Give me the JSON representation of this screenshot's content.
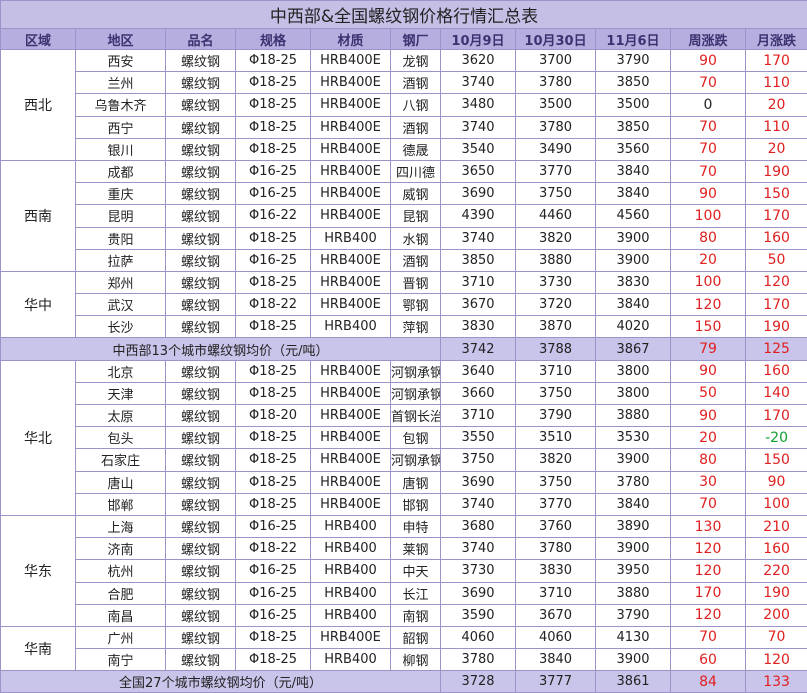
{
  "title": "中西部&全国螺纹钢价格行情汇总表",
  "header": [
    "区域",
    "地区",
    "品名",
    "规格",
    "材质",
    "钢厂",
    "10月9日",
    "10月30日",
    "11月6日",
    "周涨跌",
    "月涨跌"
  ],
  "sections": [
    {
      "groups": [
        {
          "region": "西北",
          "rows": [
            [
              "西安",
              "螺纹钢",
              "Φ18-25",
              "HRB400E",
              "龙钢",
              3620,
              3700,
              3790,
              90,
              170
            ],
            [
              "兰州",
              "螺纹钢",
              "Φ18-25",
              "HRB400E",
              "酒钢",
              3740,
              3780,
              3850,
              70,
              110
            ],
            [
              "乌鲁木齐",
              "螺纹钢",
              "Φ18-25",
              "HRB400E",
              "八钢",
              3480,
              3500,
              3500,
              0,
              20
            ],
            [
              "西宁",
              "螺纹钢",
              "Φ18-25",
              "HRB400E",
              "酒钢",
              3740,
              3780,
              3850,
              70,
              110
            ],
            [
              "银川",
              "螺纹钢",
              "Φ18-25",
              "HRB400E",
              "德晟",
              3540,
              3490,
              3560,
              70,
              20
            ]
          ]
        },
        {
          "region": "西南",
          "rows": [
            [
              "成都",
              "螺纹钢",
              "Φ16-25",
              "HRB400E",
              "四川德",
              3650,
              3770,
              3840,
              70,
              190
            ],
            [
              "重庆",
              "螺纹钢",
              "Φ16-25",
              "HRB400E",
              "威钢",
              3690,
              3750,
              3840,
              90,
              150
            ],
            [
              "昆明",
              "螺纹钢",
              "Φ16-22",
              "HRB400E",
              "昆钢",
              4390,
              4460,
              4560,
              100,
              170
            ],
            [
              "贵阳",
              "螺纹钢",
              "Φ18-25",
              "HRB400",
              "水钢",
              3740,
              3820,
              3900,
              80,
              160
            ],
            [
              "拉萨",
              "螺纹钢",
              "Φ16-25",
              "HRB400E",
              "酒钢",
              3850,
              3880,
              3900,
              20,
              50
            ]
          ]
        },
        {
          "region": "华中",
          "rows": [
            [
              "郑州",
              "螺纹钢",
              "Φ18-25",
              "HRB400E",
              "晋钢",
              3710,
              3730,
              3830,
              100,
              120
            ],
            [
              "武汉",
              "螺纹钢",
              "Φ18-22",
              "HRB400E",
              "鄂钢",
              3670,
              3720,
              3840,
              120,
              170
            ],
            [
              "长沙",
              "螺纹钢",
              "Φ18-25",
              "HRB400",
              "萍钢",
              3830,
              3870,
              4020,
              150,
              190
            ]
          ]
        }
      ],
      "summary": {
        "label": "中西部13个城市螺纹钢均价（元/吨）",
        "values": [
          3742,
          3788,
          3867,
          79,
          125
        ]
      }
    },
    {
      "groups": [
        {
          "region": "华北",
          "rows": [
            [
              "北京",
              "螺纹钢",
              "Φ18-25",
              "HRB400E",
              "河钢承钢",
              3640,
              3710,
              3800,
              90,
              160
            ],
            [
              "天津",
              "螺纹钢",
              "Φ18-25",
              "HRB400E",
              "河钢承钢",
              3660,
              3750,
              3800,
              50,
              140
            ],
            [
              "太原",
              "螺纹钢",
              "Φ18-20",
              "HRB400E",
              "首钢长治",
              3710,
              3790,
              3880,
              90,
              170
            ],
            [
              "包头",
              "螺纹钢",
              "Φ18-25",
              "HRB400E",
              "包钢",
              3550,
              3510,
              3530,
              20,
              -20
            ],
            [
              "石家庄",
              "螺纹钢",
              "Φ18-25",
              "HRB400E",
              "河钢承钢",
              3750,
              3820,
              3900,
              80,
              150
            ],
            [
              "唐山",
              "螺纹钢",
              "Φ18-25",
              "HRB400E",
              "唐钢",
              3690,
              3750,
              3780,
              30,
              90
            ],
            [
              "邯郸",
              "螺纹钢",
              "Φ18-25",
              "HRB400E",
              "邯钢",
              3740,
              3770,
              3840,
              70,
              100
            ]
          ]
        },
        {
          "region": "华东",
          "rows": [
            [
              "上海",
              "螺纹钢",
              "Φ16-25",
              "HRB400",
              "申特",
              3680,
              3760,
              3890,
              130,
              210
            ],
            [
              "济南",
              "螺纹钢",
              "Φ18-22",
              "HRB400",
              "莱钢",
              3740,
              3780,
              3900,
              120,
              160
            ],
            [
              "杭州",
              "螺纹钢",
              "Φ16-25",
              "HRB400",
              "中天",
              3730,
              3830,
              3950,
              120,
              220
            ],
            [
              "合肥",
              "螺纹钢",
              "Φ16-25",
              "HRB400",
              "长江",
              3690,
              3710,
              3880,
              170,
              190
            ],
            [
              "南昌",
              "螺纹钢",
              "Φ16-25",
              "HRB400",
              "南钢",
              3590,
              3670,
              3790,
              120,
              200
            ]
          ]
        },
        {
          "region": "华南",
          "rows": [
            [
              "广州",
              "螺纹钢",
              "Φ18-25",
              "HRB400E",
              "韶钢",
              4060,
              4060,
              4130,
              70,
              70
            ],
            [
              "南宁",
              "螺纹钢",
              "Φ18-25",
              "HRB400",
              "柳钢",
              3780,
              3840,
              3900,
              60,
              120
            ]
          ]
        }
      ],
      "summary": {
        "label": "全国27个城市螺纹钢均价（元/吨）",
        "values": [
          3728,
          3777,
          3861,
          84,
          133
        ]
      }
    }
  ]
}
